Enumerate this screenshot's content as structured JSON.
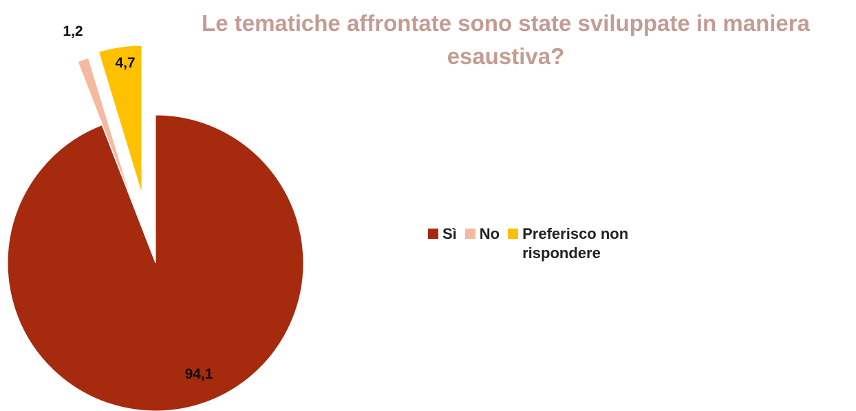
{
  "chart_data": {
    "type": "pie",
    "title": "Le tematiche affrontate sono state sviluppate in maniera esaustiva?",
    "slices": [
      {
        "label": "Sì",
        "value": 94.1,
        "data_label": "94,1",
        "color": "#A52A0E",
        "exploded": false
      },
      {
        "label": "No",
        "value": 1.2,
        "data_label": "1,2",
        "color": "#F5B9A0",
        "exploded": true
      },
      {
        "label": "Preferisco non rispondere",
        "value": 4.7,
        "data_label": "4,7",
        "color": "#FFC000",
        "exploded": true
      }
    ],
    "legend_position": "right"
  }
}
